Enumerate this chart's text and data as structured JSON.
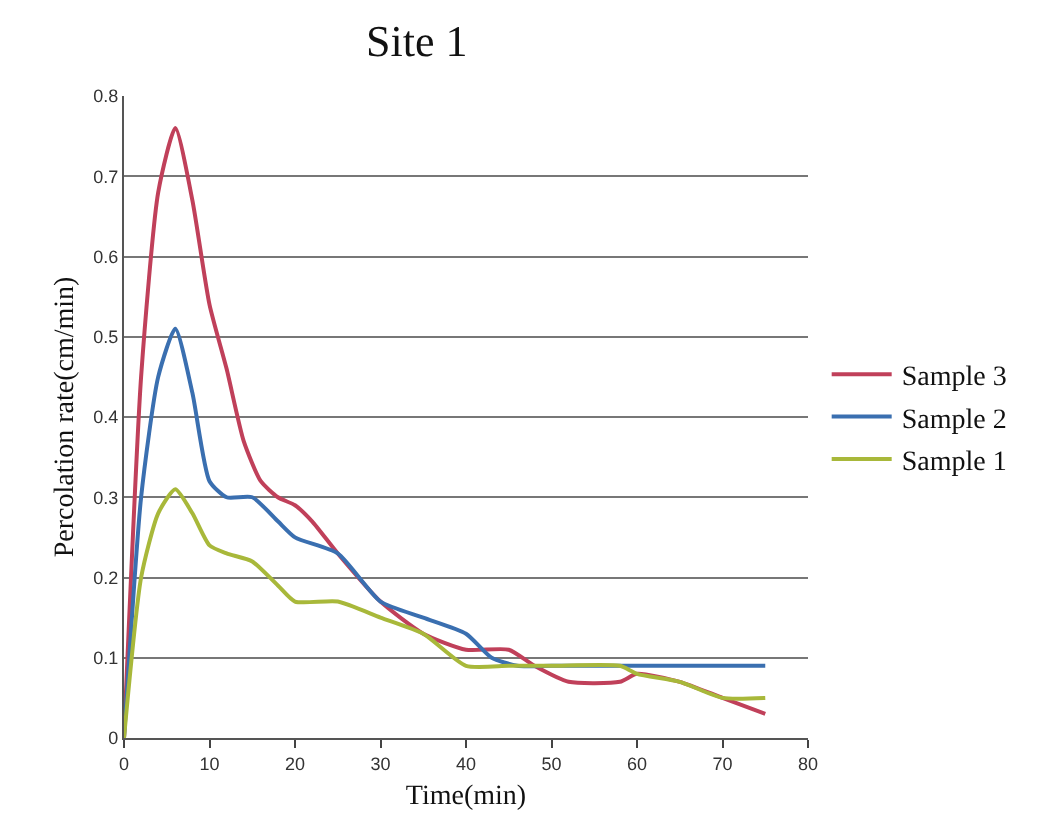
{
  "chart_data": {
    "type": "line",
    "title": "Site 1",
    "xlabel": "Time(min)",
    "ylabel": "Percolation rate(cm/min)",
    "xlim": [
      0,
      80
    ],
    "xticks": [
      0,
      10,
      20,
      30,
      40,
      50,
      60,
      70,
      80
    ],
    "ylim": [
      0,
      0.8
    ],
    "yticks": [
      0,
      0.1,
      0.2,
      0.3,
      0.4,
      0.5,
      0.6,
      0.7,
      0.8
    ],
    "grid": "y",
    "legend": "right",
    "marker": "none",
    "line_style": "solid",
    "series": [
      {
        "name": "Sample 3",
        "color": "#c0405a",
        "x": [
          0,
          2,
          4,
          6,
          8,
          10,
          12,
          14,
          16,
          18,
          20,
          22,
          25,
          30,
          35,
          40,
          45,
          48,
          52,
          58,
          60,
          65,
          70,
          75
        ],
        "values": [
          0,
          0.45,
          0.68,
          0.76,
          0.67,
          0.54,
          0.46,
          0.37,
          0.32,
          0.3,
          0.29,
          0.27,
          0.23,
          0.17,
          0.13,
          0.11,
          0.11,
          0.09,
          0.07,
          0.07,
          0.08,
          0.07,
          0.05,
          0.03
        ]
      },
      {
        "name": "Sample 2",
        "color": "#3a6fb0",
        "x": [
          0,
          2,
          4,
          6,
          8,
          10,
          12,
          15,
          18,
          20,
          25,
          30,
          35,
          40,
          43,
          46,
          50,
          55,
          60,
          70,
          75
        ],
        "values": [
          0,
          0.3,
          0.45,
          0.51,
          0.43,
          0.32,
          0.3,
          0.3,
          0.27,
          0.25,
          0.23,
          0.17,
          0.15,
          0.13,
          0.1,
          0.09,
          0.09,
          0.09,
          0.09,
          0.09,
          0.09
        ]
      },
      {
        "name": "Sample 1",
        "color": "#a8b83a",
        "x": [
          0,
          2,
          4,
          6,
          8,
          10,
          12,
          15,
          18,
          20,
          25,
          30,
          35,
          40,
          45,
          50,
          58,
          60,
          65,
          70,
          75
        ],
        "values": [
          0,
          0.2,
          0.28,
          0.31,
          0.28,
          0.24,
          0.23,
          0.22,
          0.19,
          0.17,
          0.17,
          0.15,
          0.13,
          0.09,
          0.09,
          0.09,
          0.09,
          0.08,
          0.07,
          0.05,
          0.05
        ]
      }
    ]
  }
}
